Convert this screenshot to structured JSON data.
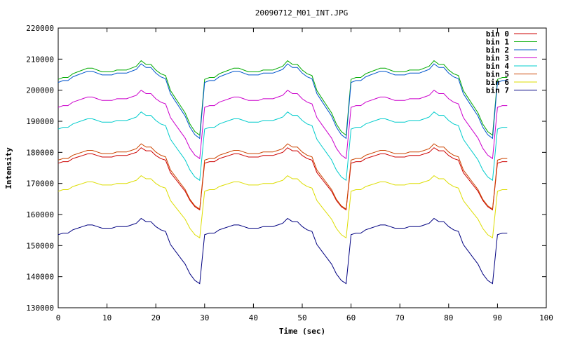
{
  "chart_data": {
    "type": "line",
    "title": "20090712_M01_INT.JPG",
    "xlabel": "Time (sec)",
    "ylabel": "Intensity",
    "xlim": [
      0,
      100
    ],
    "ylim": [
      130000,
      220000
    ],
    "xticks": [
      0,
      10,
      20,
      30,
      40,
      50,
      60,
      70,
      80,
      90,
      100
    ],
    "yticks": [
      130000,
      140000,
      150000,
      160000,
      170000,
      180000,
      190000,
      200000,
      210000,
      220000
    ],
    "grid": false,
    "legend_position": "top-right",
    "x": [
      0,
      1,
      2,
      3,
      4,
      5,
      6,
      7,
      8,
      9,
      10,
      11,
      12,
      13,
      14,
      15,
      16,
      17,
      18,
      19,
      20,
      21,
      22,
      23,
      24,
      25,
      26,
      27,
      28,
      29,
      30,
      31,
      32,
      33,
      34,
      35,
      36,
      37,
      38,
      39,
      40,
      41,
      42,
      43,
      44,
      45,
      46,
      47,
      48,
      49,
      50,
      51,
      52,
      53,
      54,
      55,
      56,
      57,
      58,
      59,
      60,
      61,
      62,
      63,
      64,
      65,
      66,
      67,
      68,
      69,
      70,
      71,
      72,
      73,
      74,
      75,
      76,
      77,
      78,
      79,
      80,
      81,
      82,
      83,
      84,
      85,
      86,
      87,
      88,
      89,
      90,
      91,
      92
    ],
    "cycle": [
      0,
      0.5,
      0.5,
      1.5,
      2,
      2.5,
      3,
      3,
      2.5,
      2,
      2,
      2,
      2.5,
      2.5,
      2.5,
      3,
      3.5,
      5,
      4,
      4,
      2.5,
      1.5,
      1,
      -3,
      -5,
      -7,
      -9,
      -12,
      -14,
      -15
    ],
    "series": [
      {
        "name": "bin 0",
        "color": "#cc0000",
        "base": 176500,
        "amp": 1000
      },
      {
        "name": "bin 1",
        "color": "#00aa00",
        "base": 203500,
        "amp": 1200
      },
      {
        "name": "bin 2",
        "color": "#0055cc",
        "base": 202500,
        "amp": 1200
      },
      {
        "name": "bin 3",
        "color": "#cc00cc",
        "base": 194500,
        "amp": 1100
      },
      {
        "name": "bin 4",
        "color": "#00cccc",
        "base": 187500,
        "amp": 1100
      },
      {
        "name": "bin 5",
        "color": "#cc4400",
        "base": 177500,
        "amp": 1050
      },
      {
        "name": "bin 6",
        "color": "#dddd00",
        "base": 167500,
        "amp": 1000
      },
      {
        "name": "bin 7",
        "color": "#000080",
        "base": 153500,
        "amp": 1050
      }
    ]
  }
}
